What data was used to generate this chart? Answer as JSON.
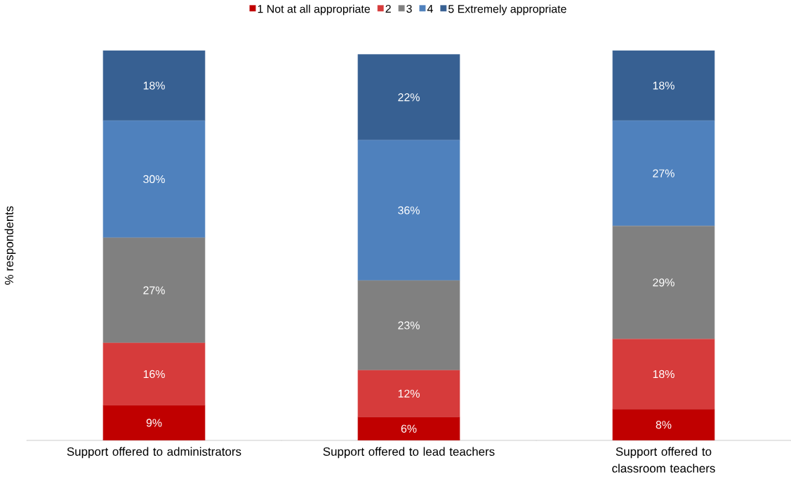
{
  "chart_data": {
    "type": "bar",
    "stacked": true,
    "ylabel": "% respondents",
    "legend": "top",
    "categories": [
      "Support offered to administrators",
      "Support offered to lead teachers",
      "Support offered to classroom teachers"
    ],
    "series": [
      {
        "name": "1 Not at all appropriate",
        "color": "#c00000",
        "values": [
          9,
          6,
          8
        ],
        "value_labels": [
          "9%",
          "6%",
          "8%"
        ]
      },
      {
        "name": "2",
        "color": "#d63b3b",
        "values": [
          16,
          12,
          18
        ],
        "value_labels": [
          "16%",
          "12%",
          "18%"
        ]
      },
      {
        "name": "3",
        "color": "#808080",
        "values": [
          27,
          23,
          29
        ],
        "value_labels": [
          "27%",
          "23%",
          "29%"
        ]
      },
      {
        "name": "4",
        "color": "#4f81bd",
        "values": [
          30,
          36,
          27
        ],
        "value_labels": [
          "30%",
          "36%",
          "27%"
        ]
      },
      {
        "name": "5 Extremely appropriate",
        "color": "#376092",
        "values": [
          18,
          22,
          18
        ],
        "value_labels": [
          "18%",
          "22%",
          "18%"
        ]
      }
    ]
  }
}
